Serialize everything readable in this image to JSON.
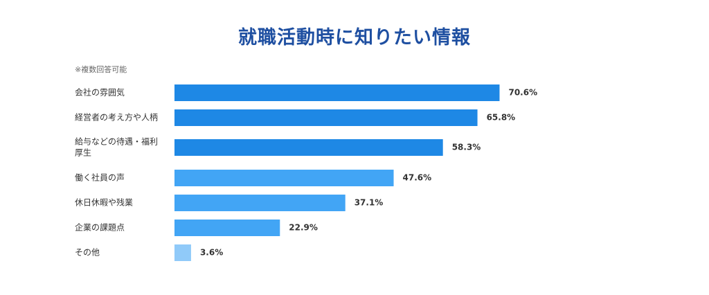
{
  "title": "就職活動時に知りたい情報",
  "note": "※複数回答可能",
  "colors": {
    "title": "#1e4fa1",
    "dark_bar": "#1e88e5",
    "mid_bar": "#42a5f5",
    "light_bar": "#90caf9"
  },
  "chart_data": {
    "type": "bar",
    "orientation": "horizontal",
    "title": "就職活動時に知りたい情報",
    "xlabel": "",
    "ylabel": "",
    "value_suffix": "%",
    "categories": [
      [
        "会社の雰囲気"
      ],
      [
        "経営者の考え方や人柄"
      ],
      [
        "給与などの待遇・福利",
        "厚生"
      ],
      [
        "働く社員の声"
      ],
      [
        "休日休暇や残業"
      ],
      [
        "企業の課題点"
      ],
      [
        "その他"
      ]
    ],
    "values": [
      70.6,
      65.8,
      58.3,
      47.6,
      37.1,
      22.9,
      3.6
    ],
    "value_labels": [
      "70.6%",
      "65.8%",
      "58.3%",
      "47.6%",
      "37.1%",
      "22.9%",
      "3.6%"
    ],
    "bar_color_keys": [
      "dark_bar",
      "dark_bar",
      "dark_bar",
      "mid_bar",
      "mid_bar",
      "mid_bar",
      "light_bar"
    ],
    "xlim": [
      0,
      100
    ],
    "grid": false,
    "legend": "none"
  }
}
